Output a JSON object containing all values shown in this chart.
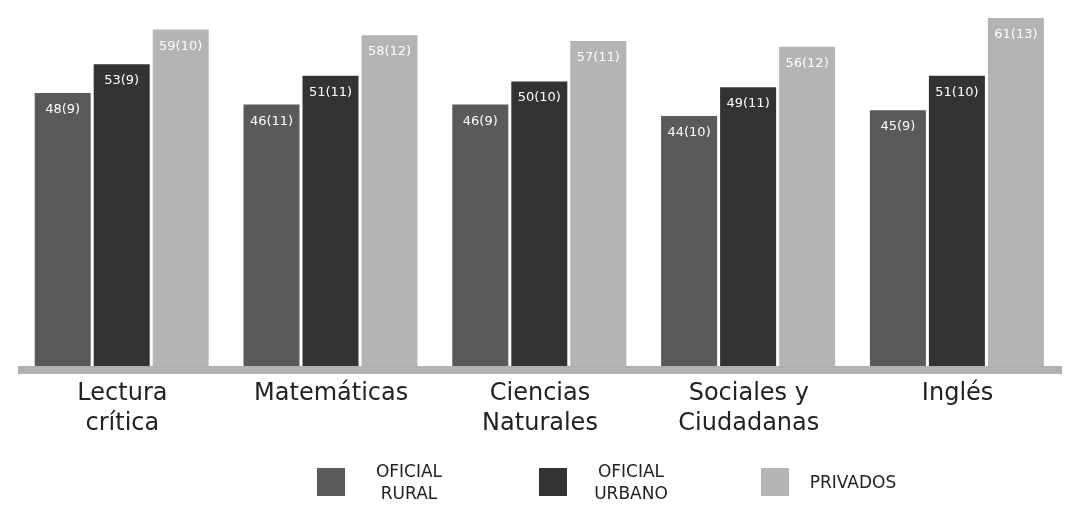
{
  "chart_data": {
    "type": "bar",
    "categories": [
      "Lectura crítica",
      "Matemáticas",
      "Ciencias Naturales",
      "Sociales y Ciudadanas",
      "Inglés"
    ],
    "series": [
      {
        "name": "OFICIAL RURAL",
        "color": "#5a5a5c",
        "values": [
          48,
          46,
          46,
          44,
          45
        ],
        "value_labels": [
          "48(9)",
          "46(11)",
          "46(9)",
          "44(10)",
          "45(9)"
        ]
      },
      {
        "name": "OFICIAL URBANO",
        "color": "#333333",
        "values": [
          53,
          51,
          50,
          49,
          51
        ],
        "value_labels": [
          "53(9)",
          "51(11)",
          "50(10)",
          "49(11)",
          "51(10)"
        ]
      },
      {
        "name": "PRIVADOS",
        "color": "#b4b4b6",
        "values": [
          59,
          58,
          57,
          56,
          61
        ],
        "value_labels": [
          "59(10)",
          "58(12)",
          "57(11)",
          "56(12)",
          "61(13)"
        ]
      }
    ],
    "legend": "bottom",
    "grid": false
  }
}
